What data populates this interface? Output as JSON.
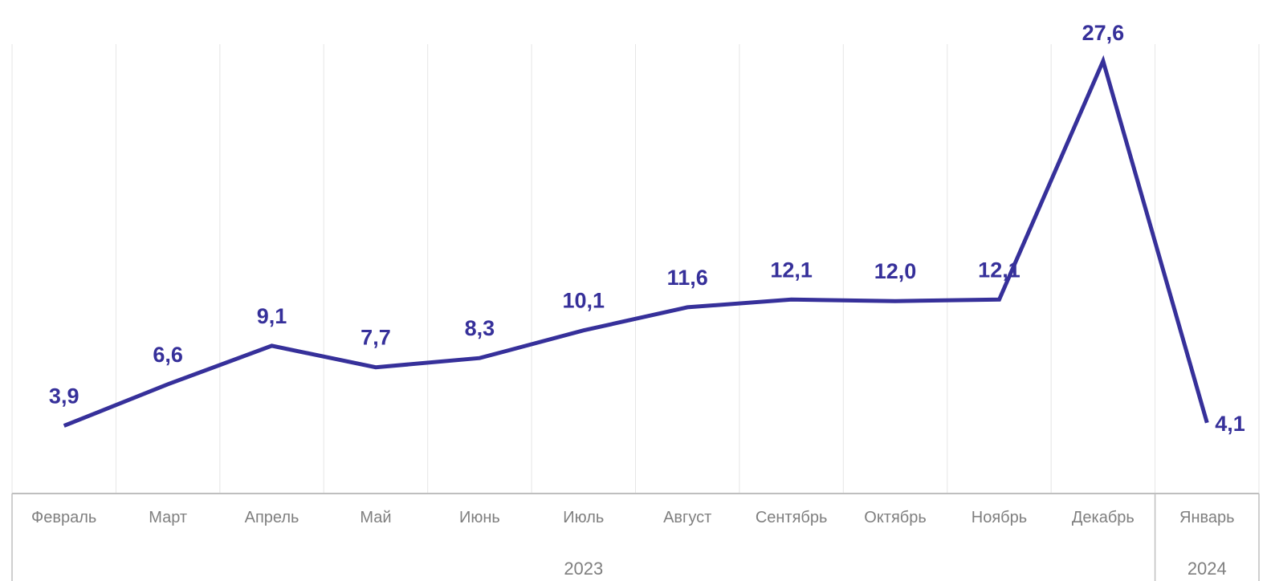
{
  "chart_data": {
    "type": "line",
    "categories": [
      "Февраль",
      "Март",
      "Апрель",
      "Май",
      "Июнь",
      "Июль",
      "Август",
      "Сентябрь",
      "Октябрь",
      "Ноябрь",
      "Декабрь",
      "Январь"
    ],
    "values": [
      3.9,
      6.6,
      9.1,
      7.7,
      8.3,
      10.1,
      11.6,
      12.1,
      12.0,
      12.1,
      27.6,
      4.1
    ],
    "data_labels": [
      "3,9",
      "6,6",
      "9,1",
      "7,7",
      "8,3",
      "10,1",
      "11,6",
      "12,1",
      "12,0",
      "12,1",
      "27,6",
      "4,1"
    ],
    "year_groups": [
      {
        "label": "2023",
        "start": 0,
        "end": 10
      },
      {
        "label": "2024",
        "start": 11,
        "end": 11
      }
    ],
    "title": "",
    "xlabel": "",
    "ylabel": "",
    "ylim": [
      -0.5,
      30
    ],
    "grid": "vertical",
    "legend": "none",
    "line_color": "#36309a",
    "label_color": "#36309a"
  }
}
